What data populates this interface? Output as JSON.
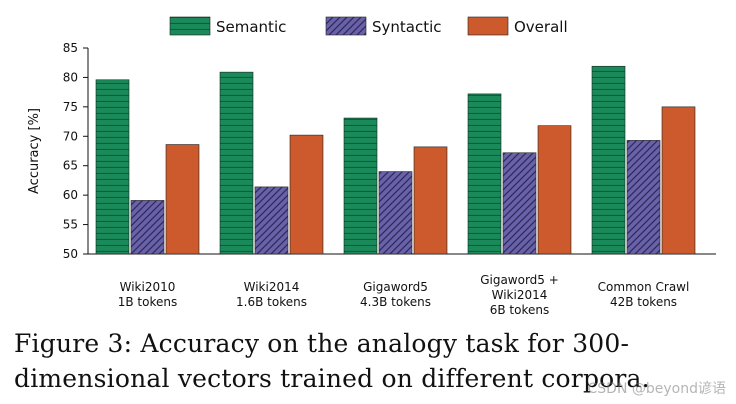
{
  "chart_data": {
    "type": "bar",
    "ylabel": "Accuracy [%]",
    "ylim": [
      50,
      85
    ],
    "yticks": [
      "50",
      "55",
      "60",
      "65",
      "70",
      "75",
      "80",
      "85"
    ],
    "legend_position": "top",
    "categories": [
      {
        "line1": "Wiki2010",
        "line2": "1B tokens",
        "line3": ""
      },
      {
        "line1": "Wiki2014",
        "line2": "1.6B tokens",
        "line3": ""
      },
      {
        "line1": "Gigaword5",
        "line2": "4.3B tokens",
        "line3": ""
      },
      {
        "line1": "Gigaword5 +",
        "line2": "Wiki2014",
        "line3": "6B tokens"
      },
      {
        "line1": "Common Crawl",
        "line2": "42B tokens",
        "line3": ""
      }
    ],
    "series": [
      {
        "name": "Semantic",
        "color": "#1a8a5a",
        "values": [
          79.6,
          80.9,
          73.1,
          77.2,
          81.9
        ]
      },
      {
        "name": "Syntactic",
        "color": "#6a62a8",
        "values": [
          59.1,
          61.4,
          64.0,
          67.2,
          69.3
        ]
      },
      {
        "name": "Overall",
        "color": "#cc5a2c",
        "values": [
          68.6,
          70.2,
          68.2,
          71.8,
          75.0
        ]
      }
    ]
  },
  "caption": {
    "line1": "Figure 3:  Accuracy on the analogy task for 300-",
    "line2": "dimensional vectors trained on different corpora."
  },
  "watermark": "CSDN @beyond谚语"
}
